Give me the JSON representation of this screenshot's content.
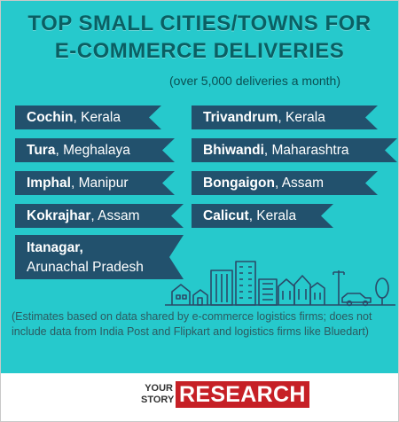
{
  "header": {
    "title_line1": "TOP SMALL CITIES/TOWNS FOR",
    "title_line2": "E-COMMERCE DELIVERIES",
    "subtitle": "(over 5,000 deliveries a month)"
  },
  "cities": {
    "left": [
      {
        "city": "Cochin",
        "state": ", Kerala"
      },
      {
        "city": "Tura",
        "state": ", Meghalaya"
      },
      {
        "city": "Imphal",
        "state": ", Manipur"
      },
      {
        "city": "Kokrajhar",
        "state": ", Assam"
      },
      {
        "city": "Itanagar,",
        "state": "Arunachal Pradesh"
      }
    ],
    "right": [
      {
        "city": "Trivandrum",
        "state": ", Kerala"
      },
      {
        "city": "Bhiwandi",
        "state": ", Maharashtra"
      },
      {
        "city": "Bongaigon",
        "state": ", Assam"
      },
      {
        "city": "Calicut",
        "state": ", Kerala"
      }
    ]
  },
  "note": "(Estimates based on data shared by e-commerce logistics firms; does not include data from India Post and Flipkart and logistics firms like Bluedart)",
  "brand": {
    "your_line1": "YOUR",
    "your_line2": "STORY",
    "research": "RESEARCH"
  },
  "colors": {
    "background": "#26c9cc",
    "title": "#0a5f63",
    "tag": "#22516d",
    "brand_red": "#c62026"
  },
  "icons": [
    "city-skyline-illustration"
  ]
}
